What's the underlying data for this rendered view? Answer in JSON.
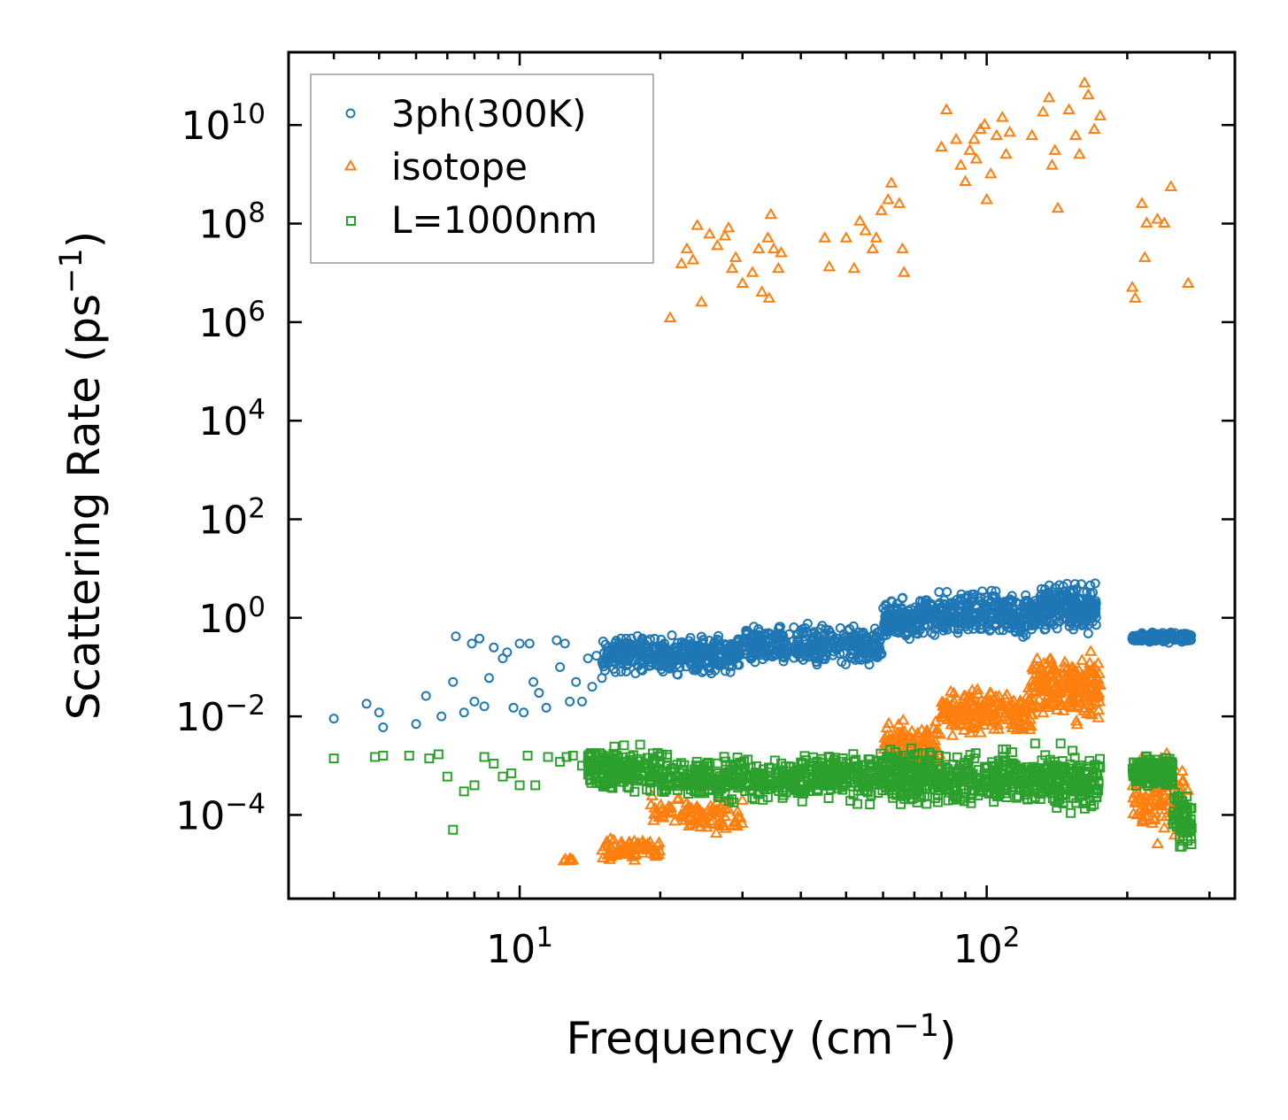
{
  "chart_data": {
    "type": "scatter",
    "xscale": "log",
    "yscale": "log",
    "xlim": [
      3.2,
      340
    ],
    "ylim": [
      2e-06,
      300000000000.0
    ],
    "xlabel": "Frequency (cm",
    "xlabel_sup": "−1",
    "xlabel_end": ")",
    "ylabel": "Scattering Rate (ps",
    "ylabel_sup": "−1",
    "ylabel_end": ")",
    "x_ticks": [
      {
        "value": 10,
        "base": "10",
        "exp": "1"
      },
      {
        "value": 100,
        "base": "10",
        "exp": "2"
      }
    ],
    "y_ticks": [
      {
        "value": 0.0001,
        "base": "10",
        "exp": "−4"
      },
      {
        "value": 0.01,
        "base": "10",
        "exp": "−2"
      },
      {
        "value": 1,
        "base": "10",
        "exp": "0"
      },
      {
        "value": 100,
        "base": "10",
        "exp": "2"
      },
      {
        "value": 10000,
        "base": "10",
        "exp": "4"
      },
      {
        "value": 1000000.0,
        "base": "10",
        "exp": "6"
      },
      {
        "value": 100000000.0,
        "base": "10",
        "exp": "8"
      },
      {
        "value": 10000000000.0,
        "base": "10",
        "exp": "10"
      }
    ],
    "legend_position": "top-left",
    "series": [
      {
        "name": "3ph(300K)",
        "marker": "circle",
        "color": "#1f77b4",
        "points": [
          [
            4.0,
            0.009
          ],
          [
            4.7,
            0.018
          ],
          [
            5.0,
            0.012
          ],
          [
            5.1,
            0.006
          ],
          [
            6.0,
            0.007
          ],
          [
            6.3,
            0.026
          ],
          [
            6.8,
            0.01
          ],
          [
            7.2,
            0.05
          ],
          [
            7.3,
            0.42
          ],
          [
            7.6,
            0.012
          ],
          [
            7.9,
            0.3
          ],
          [
            8.0,
            0.02
          ],
          [
            8.2,
            0.38
          ],
          [
            8.4,
            0.016
          ],
          [
            8.6,
            0.06
          ],
          [
            8.8,
            0.25
          ],
          [
            9.2,
            0.15
          ],
          [
            9.4,
            0.2
          ],
          [
            9.7,
            0.015
          ],
          [
            10.0,
            0.3
          ],
          [
            10.2,
            0.012
          ],
          [
            10.5,
            0.3
          ],
          [
            10.7,
            0.05
          ],
          [
            11.0,
            0.03
          ],
          [
            11.4,
            0.015
          ],
          [
            12.0,
            0.35
          ],
          [
            12.2,
            0.1
          ],
          [
            12.5,
            0.3
          ],
          [
            12.8,
            0.02
          ],
          [
            13.2,
            0.05
          ],
          [
            13.6,
            0.02
          ],
          [
            14.0,
            0.15
          ],
          [
            14.3,
            0.04
          ],
          [
            14.6,
            0.17
          ],
          [
            15.0,
            0.06
          ]
        ],
        "clusters": [
          {
            "x": [
              15,
              30
            ],
            "y": [
              0.06,
              0.55
            ],
            "n": 420
          },
          {
            "x": [
              30,
              60
            ],
            "y": [
              0.08,
              0.9
            ],
            "n": 380
          },
          {
            "x": [
              60,
              72
            ],
            "y": [
              0.25,
              3.0
            ],
            "n": 140
          },
          {
            "x": [
              72,
              130
            ],
            "y": [
              0.3,
              5.0
            ],
            "n": 360
          },
          {
            "x": [
              130,
              172
            ],
            "y": [
              0.4,
              6.5
            ],
            "n": 260
          },
          {
            "x": [
              205,
              275
            ],
            "y": [
              0.3,
              0.55
            ],
            "n": 170
          }
        ]
      },
      {
        "name": "isotope",
        "marker": "triangle",
        "color": "#ff7f0e",
        "points": [
          [
            21.0,
            1200000.0
          ],
          [
            22.2,
            15000000.0
          ],
          [
            22.8,
            30000000.0
          ],
          [
            23.5,
            18000000.0
          ],
          [
            24.0,
            90000000.0
          ],
          [
            24.5,
            2500000.0
          ],
          [
            25.5,
            60000000.0
          ],
          [
            26.5,
            35000000.0
          ],
          [
            27.5,
            55000000.0
          ],
          [
            28.0,
            80000000.0
          ],
          [
            28.5,
            12000000.0
          ],
          [
            29.0,
            20000000.0
          ],
          [
            30.0,
            6000000.0
          ],
          [
            31.5,
            10000000.0
          ],
          [
            32.5,
            30000000.0
          ],
          [
            33.0,
            4000000.0
          ],
          [
            34.0,
            50000000.0
          ],
          [
            34.5,
            150000000.0
          ],
          [
            35.0,
            30000000.0
          ],
          [
            35.8,
            12000000.0
          ],
          [
            36.3,
            25000000.0
          ],
          [
            34.2,
            3000000.0
          ],
          [
            45.0,
            50000000.0
          ],
          [
            46.0,
            13000000.0
          ],
          [
            50.0,
            50000000.0
          ],
          [
            52.0,
            12000000.0
          ],
          [
            53.5,
            110000000.0
          ],
          [
            55.0,
            70000000.0
          ],
          [
            57.0,
            30000000.0
          ],
          [
            58.0,
            50000000.0
          ],
          [
            59.5,
            180000000.0
          ],
          [
            61.5,
            300000000.0
          ],
          [
            62.5,
            650000000.0
          ],
          [
            65.0,
            250000000.0
          ],
          [
            66.0,
            30000000.0
          ],
          [
            66.5,
            10000000.0
          ],
          [
            80.0,
            3500000000.0
          ],
          [
            82.0,
            20000000000.0
          ],
          [
            86.0,
            5000000000.0
          ],
          [
            88.0,
            1500000000.0
          ],
          [
            90.0,
            700000000.0
          ],
          [
            92.0,
            3000000000.0
          ],
          [
            94.0,
            5000000000.0
          ],
          [
            95.0,
            2000000000.0
          ],
          [
            97.0,
            8000000000.0
          ],
          [
            99.0,
            10000000000.0
          ],
          [
            100.0,
            300000000.0
          ],
          [
            102.0,
            1000000000.0
          ],
          [
            105.0,
            6000000000.0
          ],
          [
            108.0,
            14000000000.0
          ],
          [
            110.0,
            2500000000.0
          ],
          [
            112.0,
            7000000000.0
          ],
          [
            125.0,
            6000000000.0
          ],
          [
            132.0,
            18000000000.0
          ],
          [
            136.0,
            35000000000.0
          ],
          [
            138.0,
            1500000000.0
          ],
          [
            140.0,
            3000000000.0
          ],
          [
            142.0,
            200000000.0
          ],
          [
            150.0,
            20000000000.0
          ],
          [
            155.0,
            6000000000.0
          ],
          [
            158.0,
            2500000000.0
          ],
          [
            162.0,
            70000000000.0
          ],
          [
            165.0,
            40000000000.0
          ],
          [
            170.0,
            8000000000.0
          ],
          [
            175.0,
            15000000000.0
          ],
          [
            205.0,
            5000000.0
          ],
          [
            208.0,
            3000000.0
          ],
          [
            215.0,
            250000000.0
          ],
          [
            218.0,
            20000000.0
          ],
          [
            220.0,
            100000000.0
          ],
          [
            232.0,
            120000000.0
          ],
          [
            240.0,
            100000000.0
          ],
          [
            248.0,
            550000000.0
          ],
          [
            270.0,
            6000000.0
          ]
        ],
        "clusters": [
          {
            "x": [
              12,
              13
            ],
            "y": [
              1e-05,
              1.4e-05
            ],
            "n": 8
          },
          {
            "x": [
              15,
              20
            ],
            "y": [
              1e-05,
              4e-05
            ],
            "n": 70
          },
          {
            "x": [
              19,
              30
            ],
            "y": [
              3e-05,
              0.0003
            ],
            "n": 90
          },
          {
            "x": [
              60,
              80
            ],
            "y": [
              0.0005,
              0.01
            ],
            "n": 120
          },
          {
            "x": [
              80,
              125
            ],
            "y": [
              0.003,
              0.05
            ],
            "n": 200
          },
          {
            "x": [
              125,
              175
            ],
            "y": [
              0.005,
              0.3
            ],
            "n": 220
          },
          {
            "x": [
              205,
              270
            ],
            "y": [
              1.5e-05,
              0.004
            ],
            "n": 110
          }
        ]
      },
      {
        "name": "L=1000nm",
        "marker": "square",
        "color": "#2ca02c",
        "points": [
          [
            4.0,
            0.0014
          ],
          [
            4.9,
            0.0015
          ],
          [
            5.1,
            0.0016
          ],
          [
            5.8,
            0.0016
          ],
          [
            6.4,
            0.0014
          ],
          [
            6.7,
            0.0017
          ],
          [
            7.0,
            0.0006
          ],
          [
            7.2,
            5e-05
          ],
          [
            7.6,
            0.0003
          ],
          [
            8.0,
            0.0004
          ],
          [
            8.4,
            0.0015
          ],
          [
            8.8,
            0.0011
          ],
          [
            9.2,
            0.0006
          ],
          [
            9.6,
            0.0007
          ],
          [
            10.0,
            0.0004
          ],
          [
            10.4,
            0.0016
          ],
          [
            10.8,
            0.0004
          ],
          [
            11.5,
            0.0015
          ],
          [
            12.2,
            0.0012
          ],
          [
            12.6,
            0.0015
          ],
          [
            13.0,
            0.0016
          ],
          [
            13.6,
            0.001
          ],
          [
            14.2,
            0.0018
          ]
        ],
        "clusters": [
          {
            "x": [
              14,
              20
            ],
            "y": [
              0.0002,
              0.0032
            ],
            "n": 190
          },
          {
            "x": [
              20,
              40
            ],
            "y": [
              0.00015,
              0.002
            ],
            "n": 300
          },
          {
            "x": [
              40,
              65
            ],
            "y": [
              0.00015,
              0.0025
            ],
            "n": 260
          },
          {
            "x": [
              65,
              120
            ],
            "y": [
              0.0001,
              0.003
            ],
            "n": 330
          },
          {
            "x": [
              120,
              175
            ],
            "y": [
              8e-05,
              0.003
            ],
            "n": 240
          },
          {
            "x": [
              205,
              250
            ],
            "y": [
              0.0003,
              0.002
            ],
            "n": 160
          },
          {
            "x": [
              250,
              275
            ],
            "y": [
              1.5e-05,
              0.0005
            ],
            "n": 70
          }
        ]
      }
    ]
  }
}
